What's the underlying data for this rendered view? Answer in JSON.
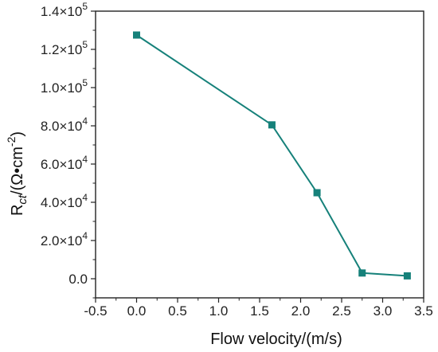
{
  "chart_data": {
    "type": "line",
    "title": "",
    "xlabel": "Flow velocity/(m/s)",
    "ylabel": {
      "main": "R",
      "sub": "ct",
      "unit_open": "/(Ω•cm",
      "unit_sup": "-2",
      "unit_close": ")"
    },
    "xlim": [
      -0.5,
      3.5
    ],
    "ylim": [
      -10000,
      140000
    ],
    "x_ticks": [
      -0.5,
      0.0,
      0.5,
      1.0,
      1.5,
      2.0,
      2.5,
      3.0,
      3.5
    ],
    "x_tick_labels": [
      "-0.5",
      "0.0",
      "0.5",
      "1.0",
      "1.5",
      "2.0",
      "2.5",
      "3.0",
      "3.5"
    ],
    "y_ticks": [
      0,
      20000,
      40000,
      60000,
      80000,
      100000,
      120000,
      140000
    ],
    "y_tick_labels": [
      {
        "mant": "0.0",
        "exp": ""
      },
      {
        "mant": "2.0×10",
        "exp": "4"
      },
      {
        "mant": "4.0×10",
        "exp": "4"
      },
      {
        "mant": "6.0×10",
        "exp": "4"
      },
      {
        "mant": "8.0×10",
        "exp": "4"
      },
      {
        "mant": "1.0×10",
        "exp": "5"
      },
      {
        "mant": "1.2×10",
        "exp": "5"
      },
      {
        "mant": "1.4×10",
        "exp": "5"
      }
    ],
    "grid": false,
    "legend": "none",
    "series": [
      {
        "color": "#16817a",
        "marker": "square",
        "x": [
          0.0,
          1.65,
          2.2,
          2.75,
          3.3
        ],
        "y": [
          127500,
          80500,
          45000,
          3000,
          1500
        ]
      }
    ]
  }
}
